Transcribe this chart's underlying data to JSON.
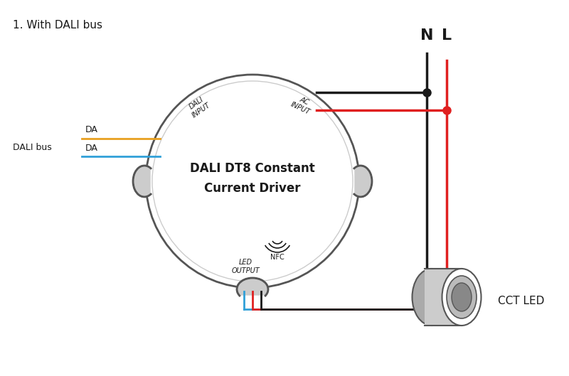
{
  "title": "1. With DALI bus",
  "driver_label_line1": "DALI DT8 Constant",
  "driver_label_line2": "Current Driver",
  "nfc_label": "NFC",
  "dali_input_label": "DALI\nINPUT",
  "ac_input_label": "AC\nINPUT",
  "led_output_label": "LED\nOUTPUT",
  "dali_bus_label": "DALI bus",
  "da_label": "DA",
  "n_label": "N",
  "l_label": "L",
  "cct_led_label": "CCT LED",
  "color_black": "#1a1a1a",
  "color_red": "#e02020",
  "color_orange": "#e8a020",
  "color_blue": "#30a0d8",
  "color_gray": "#888888",
  "color_light_gray": "#cccccc",
  "color_dark_gray": "#555555",
  "background": "#ffffff",
  "wire_lw": 2.0
}
